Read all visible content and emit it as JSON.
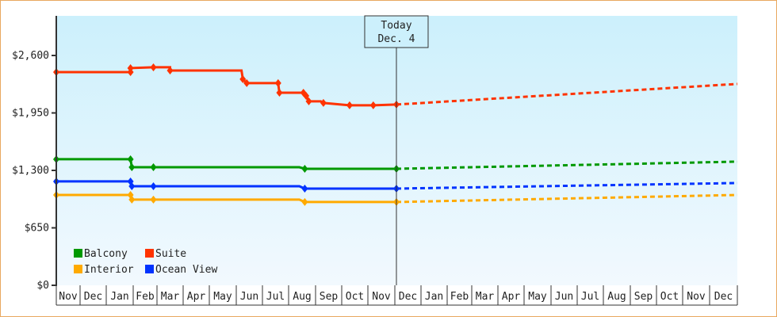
{
  "chart_data": {
    "type": "line",
    "title": "",
    "xlabel": "",
    "ylabel": "",
    "ylim": [
      0,
      2925
    ],
    "y_ticks": [
      {
        "label": "$0",
        "value": 0
      },
      {
        "label": "$650",
        "value": 650
      },
      {
        "label": "$1,300",
        "value": 1300
      },
      {
        "label": "$1,950",
        "value": 1950
      },
      {
        "label": "$2,600",
        "value": 2600
      }
    ],
    "x_ticks": [
      "Nov",
      "Dec",
      "Jan",
      "Feb",
      "Mar",
      "Apr",
      "May",
      "Jun",
      "Jul",
      "Aug",
      "Sep",
      "Oct",
      "Nov",
      "Dec",
      "Jan",
      "Feb",
      "Mar",
      "Apr",
      "May",
      "Jun",
      "Jul",
      "Aug",
      "Sep",
      "Oct",
      "Nov",
      "Dec"
    ],
    "grid": false,
    "legend_position": "bottom-left inside",
    "annotation": {
      "label_line1": "Today",
      "label_line2": "Dec. 4",
      "x_month_index": 13.06
    },
    "series": [
      {
        "name": "Suite",
        "color": "#ff3300",
        "history": [
          [
            0,
            2412
          ],
          [
            2.9,
            2412
          ],
          [
            2.9,
            2457
          ],
          [
            3.85,
            2466
          ],
          [
            4.5,
            2466
          ],
          [
            4.5,
            2430
          ],
          [
            7.2,
            2430
          ],
          [
            7.25,
            2332
          ],
          [
            7.4,
            2287
          ],
          [
            8.6,
            2287
          ],
          [
            8.65,
            2179
          ],
          [
            9.55,
            2179
          ],
          [
            9.65,
            2143
          ],
          [
            9.75,
            2081
          ],
          [
            10.2,
            2081
          ],
          [
            10.3,
            2063
          ],
          [
            11.3,
            2036
          ],
          [
            12.2,
            2036
          ],
          [
            13.06,
            2045
          ]
        ],
        "forecast": [
          [
            13.06,
            2045
          ],
          [
            26,
            2278
          ]
        ]
      },
      {
        "name": "Balcony",
        "color": "#009900",
        "history": [
          [
            0,
            1426
          ],
          [
            2.9,
            1426
          ],
          [
            2.95,
            1336
          ],
          [
            3.85,
            1336
          ],
          [
            9.4,
            1336
          ],
          [
            9.6,
            1318
          ],
          [
            12.2,
            1318
          ],
          [
            13.06,
            1318
          ]
        ],
        "forecast": [
          [
            13.06,
            1318
          ],
          [
            26,
            1399
          ]
        ]
      },
      {
        "name": "Ocean View",
        "color": "#0033ff",
        "history": [
          [
            0,
            1175
          ],
          [
            2.9,
            1175
          ],
          [
            2.95,
            1121
          ],
          [
            3.85,
            1121
          ],
          [
            9.4,
            1121
          ],
          [
            9.6,
            1094
          ],
          [
            12.2,
            1094
          ],
          [
            13.06,
            1094
          ]
        ],
        "forecast": [
          [
            13.06,
            1094
          ],
          [
            26,
            1157
          ]
        ]
      },
      {
        "name": "Interior",
        "color": "#ffaa00",
        "history": [
          [
            0,
            1022
          ],
          [
            2.9,
            1022
          ],
          [
            2.95,
            969
          ],
          [
            3.85,
            969
          ],
          [
            9.4,
            969
          ],
          [
            9.6,
            942
          ],
          [
            12.2,
            942
          ],
          [
            13.06,
            942
          ]
        ],
        "forecast": [
          [
            13.06,
            942
          ],
          [
            26,
            1022
          ]
        ]
      }
    ]
  },
  "legend": [
    {
      "label": "Balcony",
      "color": "#009900"
    },
    {
      "label": "Suite",
      "color": "#ff3300"
    },
    {
      "label": "Interior",
      "color": "#ffaa00"
    },
    {
      "label": "Ocean View",
      "color": "#0033ff"
    }
  ],
  "today_box": {
    "line1": "Today",
    "line2": "Dec. 4"
  }
}
